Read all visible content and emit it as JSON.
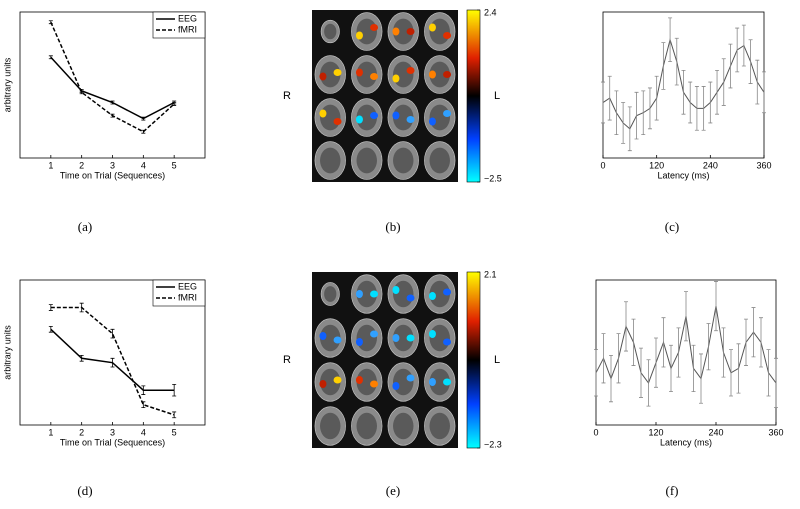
{
  "chart_data": [
    {
      "type": "line",
      "panel_label": "(a)",
      "ylabel": "arbitrary units",
      "xlabel": "Time on Trial (Sequences)",
      "x": [
        1,
        2,
        3,
        4,
        5
      ],
      "xlim": [
        0,
        6
      ],
      "xticks": [
        1,
        2,
        3,
        4,
        5
      ],
      "ylim": [
        0,
        1
      ],
      "legend": "upper right",
      "series": [
        {
          "name": "EEG",
          "color": "#000000",
          "style": "solid",
          "values": [
            0.69,
            0.46,
            0.38,
            0.27,
            0.38
          ],
          "errors": [
            0.01,
            0.01,
            0.01,
            0.01,
            0.01
          ]
        },
        {
          "name": "fMRI",
          "color": "#000000",
          "style": "dashed",
          "values": [
            0.93,
            0.45,
            0.29,
            0.18,
            0.37
          ],
          "errors": [
            0.01,
            0.01,
            0.01,
            0.01,
            0.01
          ]
        }
      ]
    },
    {
      "type": "brain",
      "panel_label": "(b)",
      "left_side": "R",
      "right_side": "L",
      "clim": [
        -2.5,
        2.4
      ],
      "cticks": [
        {
          "value": 2.4,
          "label": "2.4"
        },
        {
          "value": -2.5,
          "label": "−2.5"
        }
      ]
    },
    {
      "type": "latency",
      "panel_label": "(c)",
      "xlabel": "Latency (ms)",
      "xlim": [
        0,
        360
      ],
      "xticks": [
        0,
        120,
        240,
        360
      ],
      "ylim": [
        0,
        1
      ],
      "color": "#555555",
      "x": [
        0,
        15,
        30,
        45,
        60,
        75,
        90,
        105,
        120,
        135,
        150,
        165,
        180,
        195,
        210,
        225,
        240,
        255,
        270,
        285,
        300,
        315,
        330,
        345,
        360
      ],
      "values": [
        0.38,
        0.41,
        0.31,
        0.24,
        0.2,
        0.29,
        0.31,
        0.34,
        0.41,
        0.63,
        0.81,
        0.66,
        0.45,
        0.38,
        0.34,
        0.34,
        0.38,
        0.45,
        0.52,
        0.63,
        0.74,
        0.77,
        0.66,
        0.52,
        0.45
      ],
      "errors": [
        0.14,
        0.15,
        0.15,
        0.14,
        0.15,
        0.16,
        0.15,
        0.14,
        0.15,
        0.16,
        0.15,
        0.16,
        0.15,
        0.14,
        0.15,
        0.15,
        0.14,
        0.15,
        0.16,
        0.15,
        0.15,
        0.14,
        0.15,
        0.15,
        0.14
      ]
    },
    {
      "type": "line",
      "panel_label": "(d)",
      "ylabel": "arbitrary units",
      "xlabel": "Time on Trial (Sequences)",
      "x": [
        1,
        2,
        3,
        4,
        5
      ],
      "xlim": [
        0,
        6
      ],
      "xticks": [
        1,
        2,
        3,
        4,
        5
      ],
      "ylim": [
        0,
        1
      ],
      "legend": "upper right",
      "series": [
        {
          "name": "EEG",
          "color": "#000000",
          "style": "solid",
          "values": [
            0.66,
            0.46,
            0.43,
            0.24,
            0.24
          ],
          "errors": [
            0.02,
            0.02,
            0.03,
            0.03,
            0.04
          ]
        },
        {
          "name": "fMRI",
          "color": "#000000",
          "style": "dashed",
          "values": [
            0.81,
            0.81,
            0.63,
            0.14,
            0.07
          ],
          "errors": [
            0.02,
            0.03,
            0.03,
            0.02,
            0.02
          ]
        }
      ]
    },
    {
      "type": "brain",
      "panel_label": "(e)",
      "left_side": "R",
      "right_side": "L",
      "clim": [
        -2.3,
        2.1
      ],
      "cticks": [
        {
          "value": 2.1,
          "label": "2.1"
        },
        {
          "value": -2.3,
          "label": "−2.3"
        }
      ]
    },
    {
      "type": "latency",
      "panel_label": "(f)",
      "xlabel": "Latency (ms)",
      "xlim": [
        0,
        360
      ],
      "xticks": [
        0,
        120,
        240,
        360
      ],
      "ylim": [
        0,
        1
      ],
      "color": "#555555",
      "x": [
        0,
        15,
        30,
        45,
        60,
        75,
        90,
        105,
        120,
        135,
        150,
        165,
        180,
        195,
        210,
        225,
        240,
        255,
        270,
        285,
        300,
        315,
        330,
        345,
        360
      ],
      "values": [
        0.36,
        0.46,
        0.32,
        0.46,
        0.68,
        0.57,
        0.36,
        0.29,
        0.43,
        0.57,
        0.39,
        0.5,
        0.75,
        0.39,
        0.32,
        0.54,
        0.82,
        0.5,
        0.36,
        0.39,
        0.57,
        0.64,
        0.57,
        0.36,
        0.29
      ],
      "errors": [
        0.16,
        0.17,
        0.16,
        0.17,
        0.17,
        0.16,
        0.17,
        0.16,
        0.17,
        0.17,
        0.16,
        0.17,
        0.17,
        0.16,
        0.17,
        0.16,
        0.17,
        0.17,
        0.16,
        0.17,
        0.16,
        0.17,
        0.17,
        0.16,
        0.17
      ]
    }
  ]
}
